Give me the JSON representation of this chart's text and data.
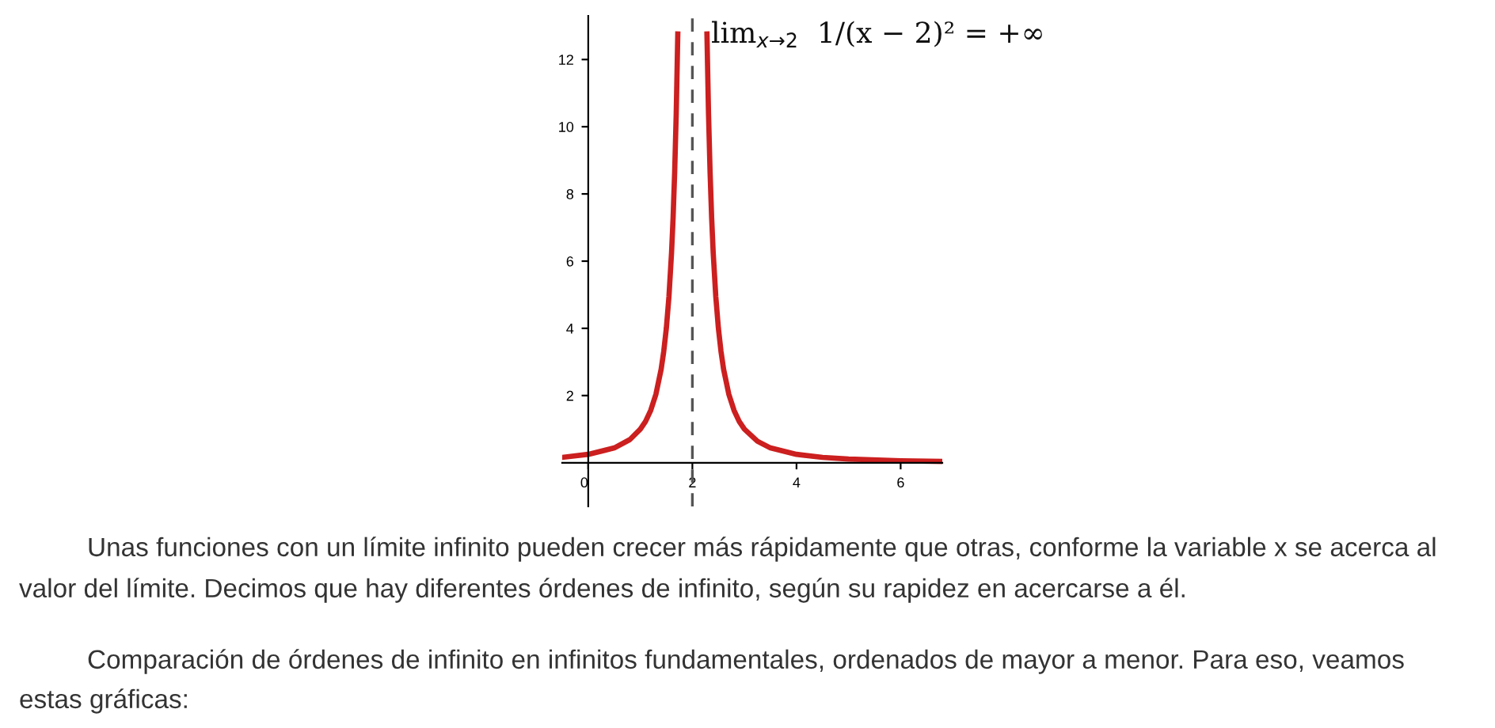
{
  "chart_data": {
    "type": "line",
    "series": [
      {
        "color": "#cc1f1f",
        "x": [
          -0.5,
          0,
          0.5,
          0.8,
          1,
          1.1,
          1.2,
          1.3,
          1.4,
          1.45,
          1.5,
          1.55,
          1.6,
          1.63,
          1.66,
          1.69,
          1.72
        ],
        "values": [
          0.16,
          0.25,
          0.44,
          0.69,
          1,
          1.23,
          1.56,
          2.04,
          2.78,
          3.31,
          4,
          4.94,
          6.25,
          7.3,
          8.65,
          10.4,
          12.76
        ]
      },
      {
        "color": "#cc1f1f",
        "x": [
          2.28,
          2.31,
          2.34,
          2.37,
          2.4,
          2.45,
          2.5,
          2.55,
          2.6,
          2.7,
          2.8,
          2.9,
          3,
          3.25,
          3.5,
          4,
          4.5,
          5,
          6,
          6.8
        ],
        "values": [
          12.76,
          10.4,
          8.65,
          7.3,
          6.25,
          4.94,
          4,
          3.31,
          2.78,
          2.04,
          1.56,
          1.23,
          1,
          0.64,
          0.44,
          0.25,
          0.16,
          0.11,
          0.06,
          0.04
        ]
      }
    ],
    "xlim": [
      -0.5,
      6.8
    ],
    "ylim": [
      -1.3,
      13.3
    ],
    "xticks": [
      {
        "value": 0,
        "label": "0"
      },
      2,
      4,
      6
    ],
    "yticks": [
      2,
      4,
      6,
      8,
      10,
      12
    ],
    "ref_lines": [
      {
        "axis": "x",
        "value": 2,
        "color": "#555555",
        "line_style": "dashed"
      }
    ],
    "annotations": [
      "lim$_{x→2}$  1/(x − 2)² = +∞",
      "Unas funciones con un límite infinito pueden crecer más rápidamente que otras, conforme la variable x se acerca al",
      "valor del límite. Decimos que hay diferentes órdenes de infinito, según su rapidez en acercarse a él.",
      "Comparación de órdenes de infinito en infinitos fundamentales, ordenados de mayor a menor. Para eso, veamos",
      "estas gráficas:"
    ]
  }
}
